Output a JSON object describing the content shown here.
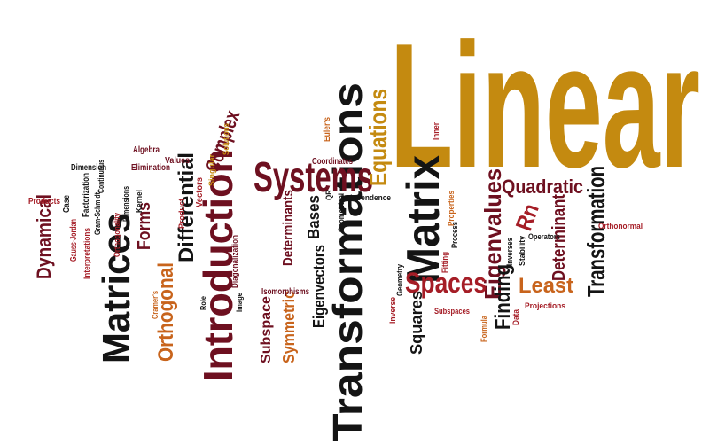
{
  "palette": {
    "background": "#ffffff",
    "gold": "#c48a10",
    "maroon": "#6e1020",
    "crimson": "#a51d26",
    "black": "#141414",
    "orange": "#c8641c"
  },
  "words": [
    {
      "id": "linear",
      "text": "Linear",
      "color": "gold"
    },
    {
      "id": "transformations",
      "text": "Transformations",
      "color": "black"
    },
    {
      "id": "introduction",
      "text": "Introduction",
      "color": "maroon"
    },
    {
      "id": "matrix",
      "text": "Matrix",
      "color": "black"
    },
    {
      "id": "matrices",
      "text": "Matrices",
      "color": "black"
    },
    {
      "id": "systems",
      "text": "Systems",
      "color": "maroon"
    },
    {
      "id": "transformation",
      "text": "Transformation",
      "color": "black"
    },
    {
      "id": "eigenvalues",
      "text": "Eigenvalues",
      "color": "maroon"
    },
    {
      "id": "equations",
      "text": "Equations",
      "color": "gold"
    },
    {
      "id": "orthogonal",
      "text": "Orthogonal",
      "color": "orange"
    },
    {
      "id": "differential",
      "text": "Differential",
      "color": "black"
    },
    {
      "id": "spaces",
      "text": "Spaces",
      "color": "crimson"
    },
    {
      "id": "finding",
      "text": "Finding",
      "color": "black"
    },
    {
      "id": "least",
      "text": "Least",
      "color": "orange"
    },
    {
      "id": "determinant",
      "text": "Determinant",
      "color": "maroon"
    },
    {
      "id": "quadratic",
      "text": "Quadratic",
      "color": "maroon"
    },
    {
      "id": "rn",
      "text": "Rn",
      "color": "crimson"
    },
    {
      "id": "complex",
      "text": "Complex",
      "color": "maroon"
    },
    {
      "id": "forms",
      "text": "Forms",
      "color": "maroon"
    },
    {
      "id": "determinants-a",
      "text": "Determinants",
      "color": "maroon"
    },
    {
      "id": "eigenvectors",
      "text": "Eigenvectors",
      "color": "black"
    },
    {
      "id": "symmetric",
      "text": "Symmetric",
      "color": "orange"
    },
    {
      "id": "subspace",
      "text": "Subspace",
      "color": "maroon"
    },
    {
      "id": "squares",
      "text": "Squares",
      "color": "black"
    },
    {
      "id": "bases",
      "text": "Bases",
      "color": "black"
    },
    {
      "id": "dynamical",
      "text": "Dynamical",
      "color": "maroon"
    },
    {
      "id": "products",
      "text": "Products",
      "color": "crimson"
    },
    {
      "id": "case",
      "text": "Case",
      "color": "black"
    },
    {
      "id": "gauss-jordan",
      "text": "Gauss-Jordan",
      "color": "crimson"
    },
    {
      "id": "interpretations",
      "text": "Interpretations",
      "color": "crimson"
    },
    {
      "id": "dimension",
      "text": "Dimension",
      "color": "black"
    },
    {
      "id": "factorization",
      "text": "Factorization",
      "color": "black"
    },
    {
      "id": "continuous",
      "text": "Continuous",
      "color": "black"
    },
    {
      "id": "gram-schmidt",
      "text": "Gram-Schmidt",
      "color": "black"
    },
    {
      "id": "orthogonality",
      "text": "Orthogonality",
      "color": "crimson"
    },
    {
      "id": "dimensions",
      "text": "Dimensions",
      "color": "black"
    },
    {
      "id": "algebra",
      "text": "Algebra",
      "color": "maroon"
    },
    {
      "id": "elimination",
      "text": "Elimination",
      "color": "maroon"
    },
    {
      "id": "kernel",
      "text": "Kernel",
      "color": "black"
    },
    {
      "id": "values",
      "text": "Values",
      "color": "maroon"
    },
    {
      "id": "product",
      "text": "Product",
      "color": "crimson"
    },
    {
      "id": "vectors",
      "text": "Vectors",
      "color": "crimson"
    },
    {
      "id": "singular",
      "text": "Singular",
      "color": "gold"
    },
    {
      "id": "solutions",
      "text": "Solutions",
      "color": "gold"
    },
    {
      "id": "diagonalization",
      "text": "Diagonalization",
      "color": "maroon"
    },
    {
      "id": "image",
      "text": "Image",
      "color": "black"
    },
    {
      "id": "isomorphisms",
      "text": "Isomorphisms",
      "color": "maroon"
    },
    {
      "id": "role",
      "text": "Role",
      "color": "black"
    },
    {
      "id": "cramers",
      "text": "Cramer's",
      "color": "orange"
    },
    {
      "id": "coordinates",
      "text": "Coordinates",
      "color": "maroon"
    },
    {
      "id": "eulers",
      "text": "Euler's",
      "color": "orange"
    },
    {
      "id": "qr",
      "text": "QR",
      "color": "black"
    },
    {
      "id": "geometrical",
      "text": "Geometrical",
      "color": "black"
    },
    {
      "id": "independence",
      "text": "Independence",
      "color": "black"
    },
    {
      "id": "inner",
      "text": "Inner",
      "color": "crimson"
    },
    {
      "id": "inverse",
      "text": "Inverse",
      "color": "crimson"
    },
    {
      "id": "geometry",
      "text": "Geometry",
      "color": "black"
    },
    {
      "id": "subspaces",
      "text": "Subspaces",
      "color": "crimson"
    },
    {
      "id": "formula",
      "text": "Formula",
      "color": "orange"
    },
    {
      "id": "fitting",
      "text": "Fitting",
      "color": "crimson"
    },
    {
      "id": "process",
      "text": "Process",
      "color": "black"
    },
    {
      "id": "properties",
      "text": "Properties",
      "color": "orange"
    },
    {
      "id": "inverses",
      "text": "Inverses",
      "color": "black"
    },
    {
      "id": "stability",
      "text": "Stability",
      "color": "black"
    },
    {
      "id": "operators",
      "text": "Operators",
      "color": "black"
    },
    {
      "id": "data",
      "text": "Data",
      "color": "crimson"
    },
    {
      "id": "projections",
      "text": "Projections",
      "color": "crimson"
    },
    {
      "id": "orthonormal",
      "text": "Orthonormal",
      "color": "crimson"
    }
  ]
}
